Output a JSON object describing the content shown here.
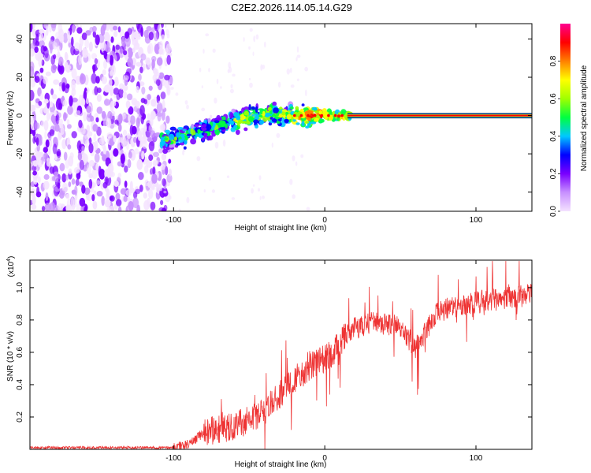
{
  "title": "C2E2.2026.114.05.14.G29",
  "chart_data": [
    {
      "type": "heatmap",
      "name": "spectrogram",
      "xlabel": "Height of straight line (km)",
      "ylabel": "Frequency (Hz)",
      "xlim": [
        -195,
        137
      ],
      "ylim": [
        -50,
        48
      ],
      "xticks": [
        -100,
        0,
        100
      ],
      "xtick_labels": [
        "-100",
        "0",
        "100"
      ],
      "yticks": [
        40,
        20,
        0,
        -20,
        -40
      ],
      "ytick_labels": [
        "40",
        "20",
        "0",
        "-20",
        "-40"
      ],
      "noise_region_x": [
        -195,
        -108
      ],
      "ridge": [
        {
          "x": -108,
          "y": -13
        },
        {
          "x": -95,
          "y": -11
        },
        {
          "x": -80,
          "y": -8
        },
        {
          "x": -65,
          "y": -4
        },
        {
          "x": -50,
          "y": -1
        },
        {
          "x": -35,
          "y": 1
        },
        {
          "x": -20,
          "y": 0
        },
        {
          "x": 0,
          "y": 0
        },
        {
          "x": 20,
          "y": 0
        },
        {
          "x": 60,
          "y": 0
        },
        {
          "x": 100,
          "y": 0
        },
        {
          "x": 137,
          "y": 0
        }
      ],
      "colorbar": {
        "label": "Normalized spectral amplitude",
        "range": [
          0,
          1
        ],
        "ticks": [
          0.0,
          0.2,
          0.4,
          0.6,
          0.8
        ],
        "tick_labels": [
          "0.0",
          "0.2",
          "0.4",
          "0.6",
          "0.8"
        ],
        "colors": [
          "#f4e2ff",
          "#c890ff",
          "#7a00ff",
          "#0000ff",
          "#00c8ff",
          "#00ff40",
          "#a0ff00",
          "#ffff00",
          "#ff8000",
          "#ff0000",
          "#ff0090"
        ]
      }
    },
    {
      "type": "line",
      "name": "snr",
      "xlabel": "Height of straight line (km)",
      "ylabel": "SNR (10 * v/v)",
      "y_multiplier": "(x10",
      "y_multiplier_exp": "4",
      "y_multiplier_close": ")",
      "xlim": [
        -195,
        137
      ],
      "ylim": [
        0,
        1.17
      ],
      "xticks": [
        -100,
        0,
        100
      ],
      "xtick_labels": [
        "-100",
        "0",
        "100"
      ],
      "yticks": [
        0.2,
        0.4,
        0.6,
        0.8,
        1.0
      ],
      "ytick_labels": [
        "0.2",
        "0.4",
        "0.6",
        "0.8",
        "1.0"
      ],
      "line_color": "#ee3333",
      "trend": [
        {
          "x": -195,
          "y": 0.01
        },
        {
          "x": -100,
          "y": 0.01
        },
        {
          "x": -90,
          "y": 0.03
        },
        {
          "x": -80,
          "y": 0.1
        },
        {
          "x": -60,
          "y": 0.13
        },
        {
          "x": -40,
          "y": 0.22
        },
        {
          "x": -25,
          "y": 0.38
        },
        {
          "x": -10,
          "y": 0.5
        },
        {
          "x": 5,
          "y": 0.58
        },
        {
          "x": 15,
          "y": 0.72
        },
        {
          "x": 30,
          "y": 0.78
        },
        {
          "x": 50,
          "y": 0.75
        },
        {
          "x": 60,
          "y": 0.62
        },
        {
          "x": 75,
          "y": 0.85
        },
        {
          "x": 100,
          "y": 0.9
        },
        {
          "x": 120,
          "y": 0.93
        },
        {
          "x": 137,
          "y": 0.95
        }
      ]
    }
  ]
}
